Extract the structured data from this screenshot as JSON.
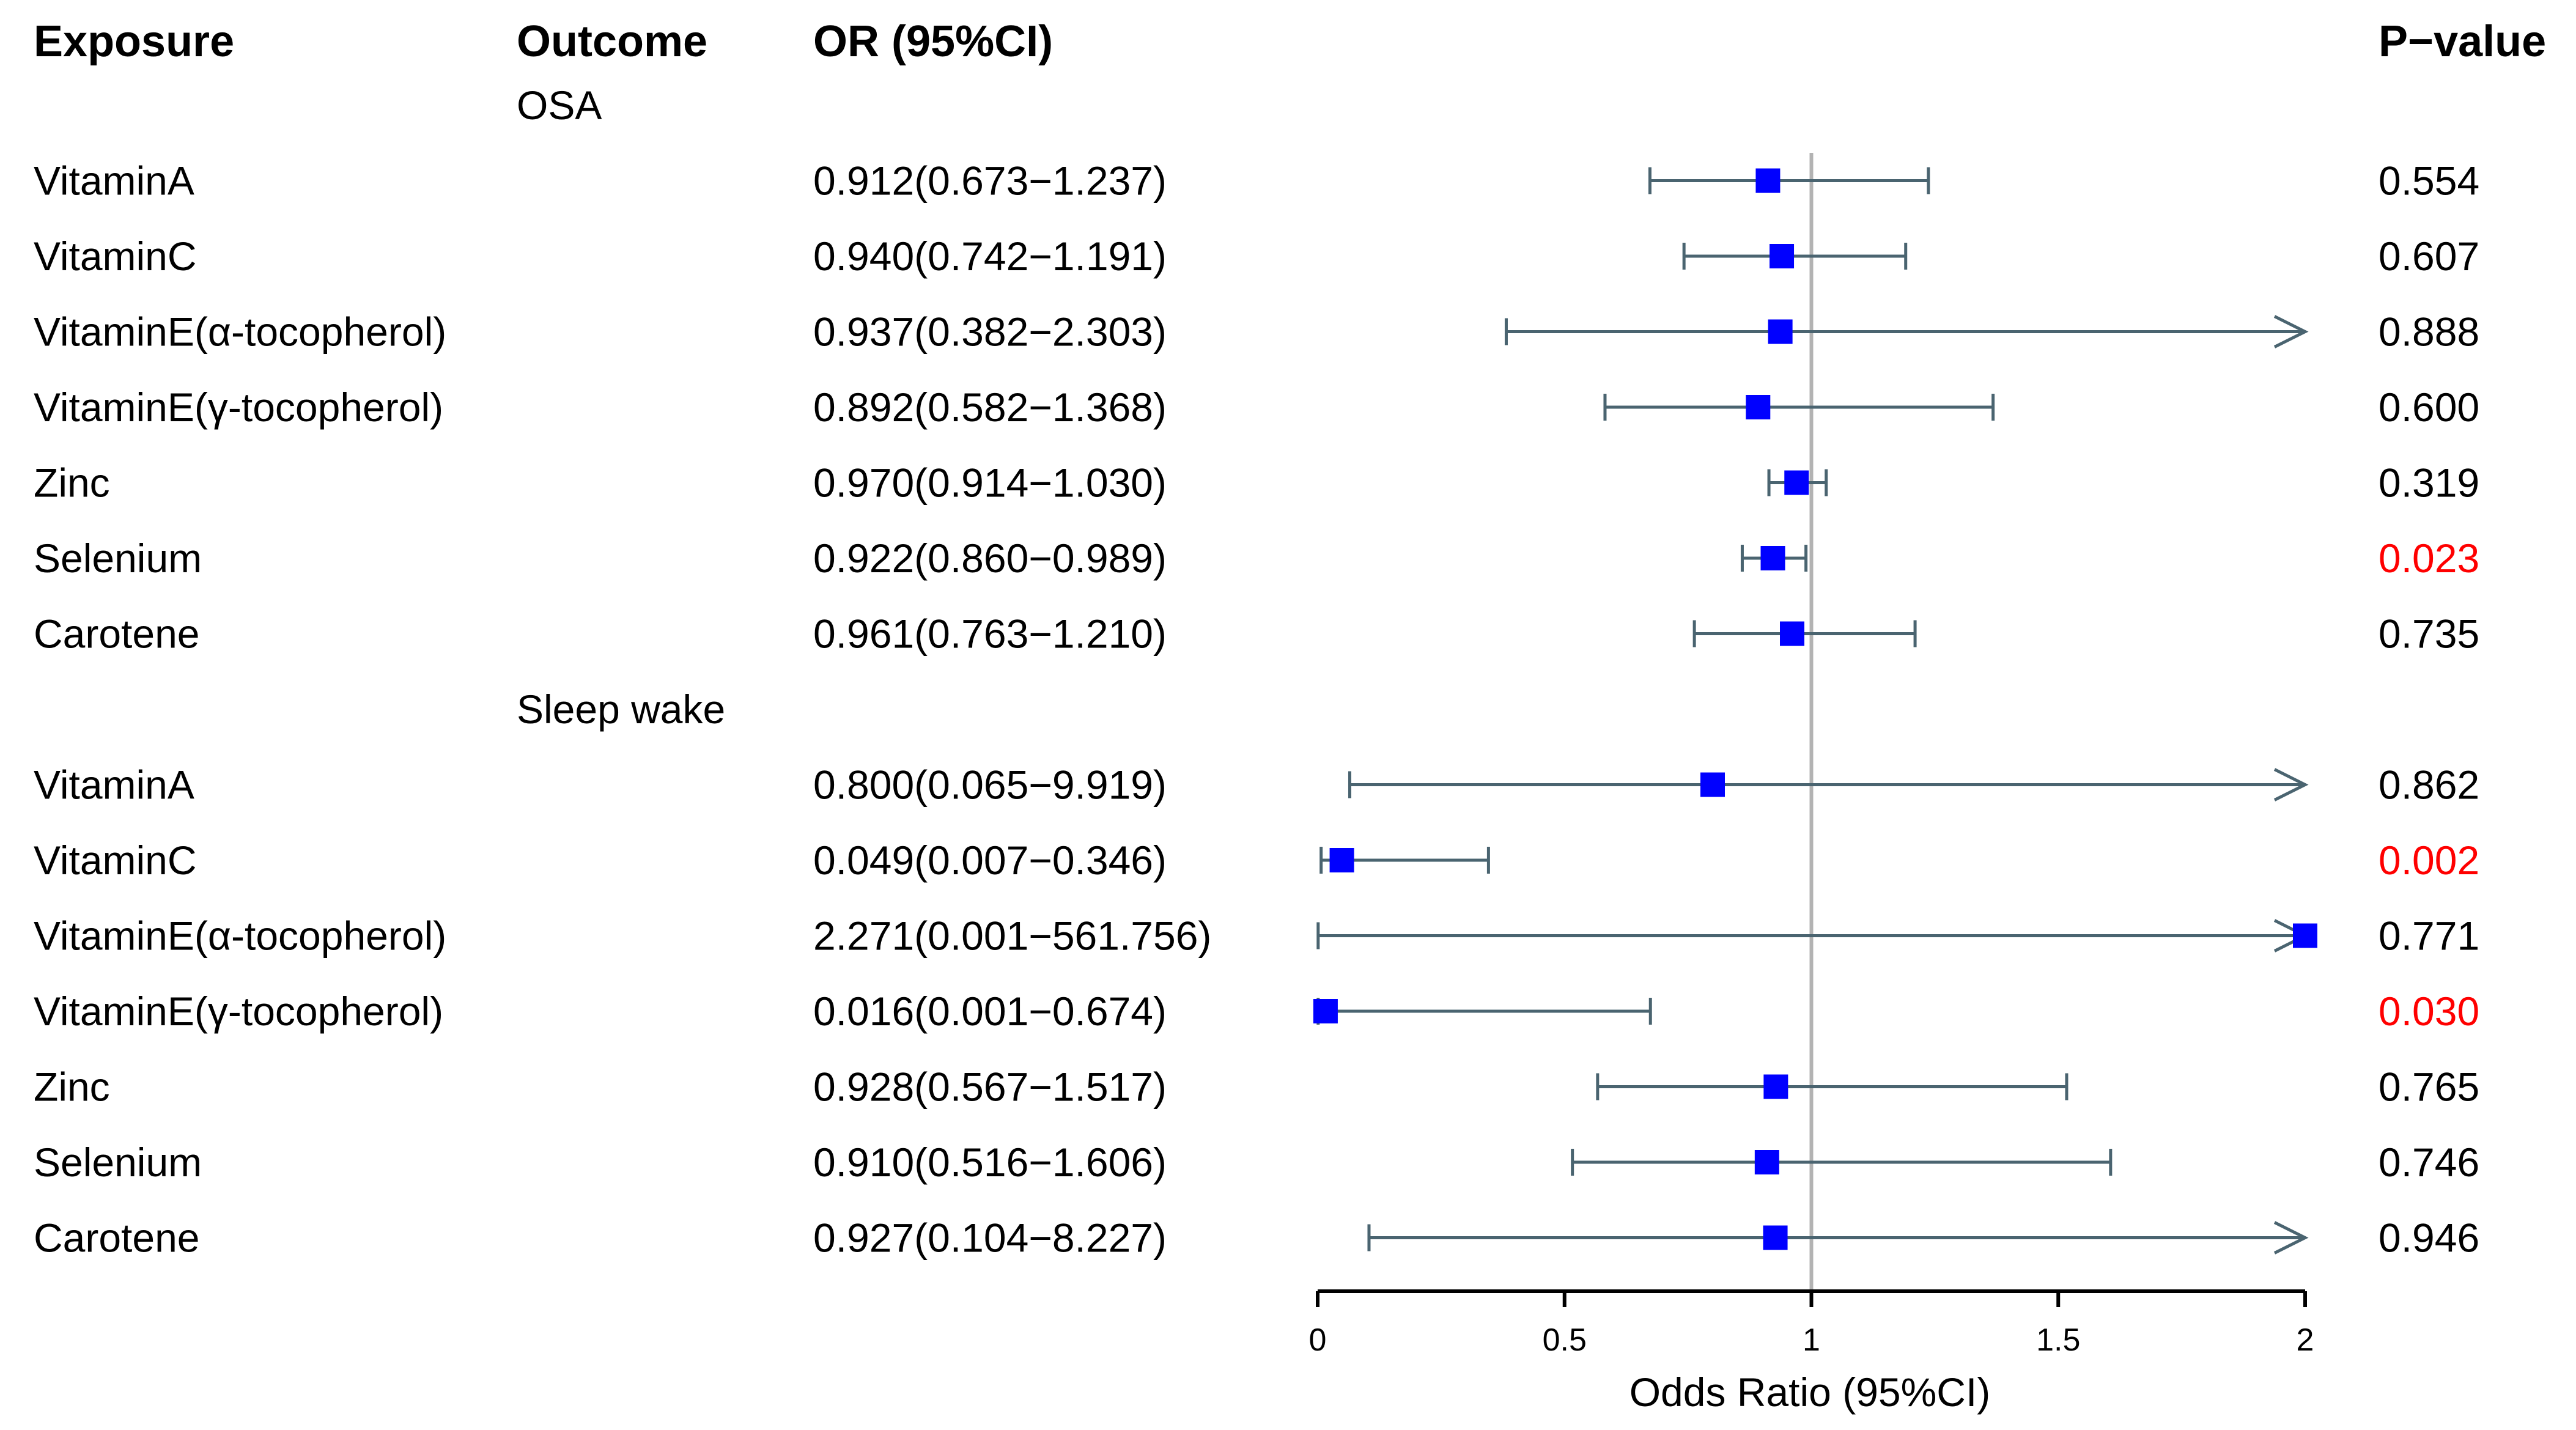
{
  "chart_data": {
    "type": "forest",
    "headers": {
      "exposure": "Exposure",
      "outcome": "Outcome",
      "or_ci": "OR (95%CI)",
      "p_value": "P−value"
    },
    "groups": [
      {
        "outcome": "OSA",
        "rows": [
          {
            "exposure": "VitaminA",
            "label": "0.912(0.673−1.237)",
            "or": 0.912,
            "lo": 0.673,
            "hi": 1.237,
            "p": "0.554",
            "sig": false
          },
          {
            "exposure": "VitaminC",
            "label": "0.940(0.742−1.191)",
            "or": 0.94,
            "lo": 0.742,
            "hi": 1.191,
            "p": "0.607",
            "sig": false
          },
          {
            "exposure": "VitaminE(α-tocopherol)",
            "label": "0.937(0.382−2.303)",
            "or": 0.937,
            "lo": 0.382,
            "hi": 2.303,
            "p": "0.888",
            "sig": false
          },
          {
            "exposure": "VitaminE(γ-tocopherol)",
            "label": "0.892(0.582−1.368)",
            "or": 0.892,
            "lo": 0.582,
            "hi": 1.368,
            "p": "0.600",
            "sig": false
          },
          {
            "exposure": "Zinc",
            "label": "0.970(0.914−1.030)",
            "or": 0.97,
            "lo": 0.914,
            "hi": 1.03,
            "p": "0.319",
            "sig": false
          },
          {
            "exposure": "Selenium",
            "label": "0.922(0.860−0.989)",
            "or": 0.922,
            "lo": 0.86,
            "hi": 0.989,
            "p": "0.023",
            "sig": true
          },
          {
            "exposure": "Carotene",
            "label": "0.961(0.763−1.210)",
            "or": 0.961,
            "lo": 0.763,
            "hi": 1.21,
            "p": "0.735",
            "sig": false
          }
        ]
      },
      {
        "outcome": "Sleep wake",
        "rows": [
          {
            "exposure": "VitaminA",
            "label": "0.800(0.065−9.919)",
            "or": 0.8,
            "lo": 0.065,
            "hi": 9.919,
            "p": "0.862",
            "sig": false
          },
          {
            "exposure": "VitaminC",
            "label": "0.049(0.007−0.346)",
            "or": 0.049,
            "lo": 0.007,
            "hi": 0.346,
            "p": "0.002",
            "sig": true
          },
          {
            "exposure": "VitaminE(α-tocopherol)",
            "label": "2.271(0.001−561.756)",
            "or": 2.271,
            "lo": 0.001,
            "hi": 561.756,
            "p": "0.771",
            "sig": false
          },
          {
            "exposure": "VitaminE(γ-tocopherol)",
            "label": "0.016(0.001−0.674)",
            "or": 0.016,
            "lo": 0.001,
            "hi": 0.674,
            "p": "0.030",
            "sig": true
          },
          {
            "exposure": "Zinc",
            "label": "0.928(0.567−1.517)",
            "or": 0.928,
            "lo": 0.567,
            "hi": 1.517,
            "p": "0.765",
            "sig": false
          },
          {
            "exposure": "Selenium",
            "label": "0.910(0.516−1.606)",
            "or": 0.91,
            "lo": 0.516,
            "hi": 1.606,
            "p": "0.746",
            "sig": false
          },
          {
            "exposure": "Carotene",
            "label": "0.927(0.104−8.227)",
            "or": 0.927,
            "lo": 0.104,
            "hi": 8.227,
            "p": "0.946",
            "sig": false
          }
        ]
      }
    ],
    "xlabel": "Odds Ratio (95%CI)",
    "xlim": [
      0,
      2
    ],
    "xticks": [
      0,
      0.5,
      1,
      1.5,
      2
    ],
    "xtick_labels": [
      "0",
      "0.5",
      "1",
      "1.5",
      "2"
    ],
    "reference_line": 1,
    "colors": {
      "point": "#0000ff",
      "ci": "#4a6470",
      "reference": "#b3b3b3",
      "significant_p": "#ff0000",
      "text": "#000000"
    }
  }
}
